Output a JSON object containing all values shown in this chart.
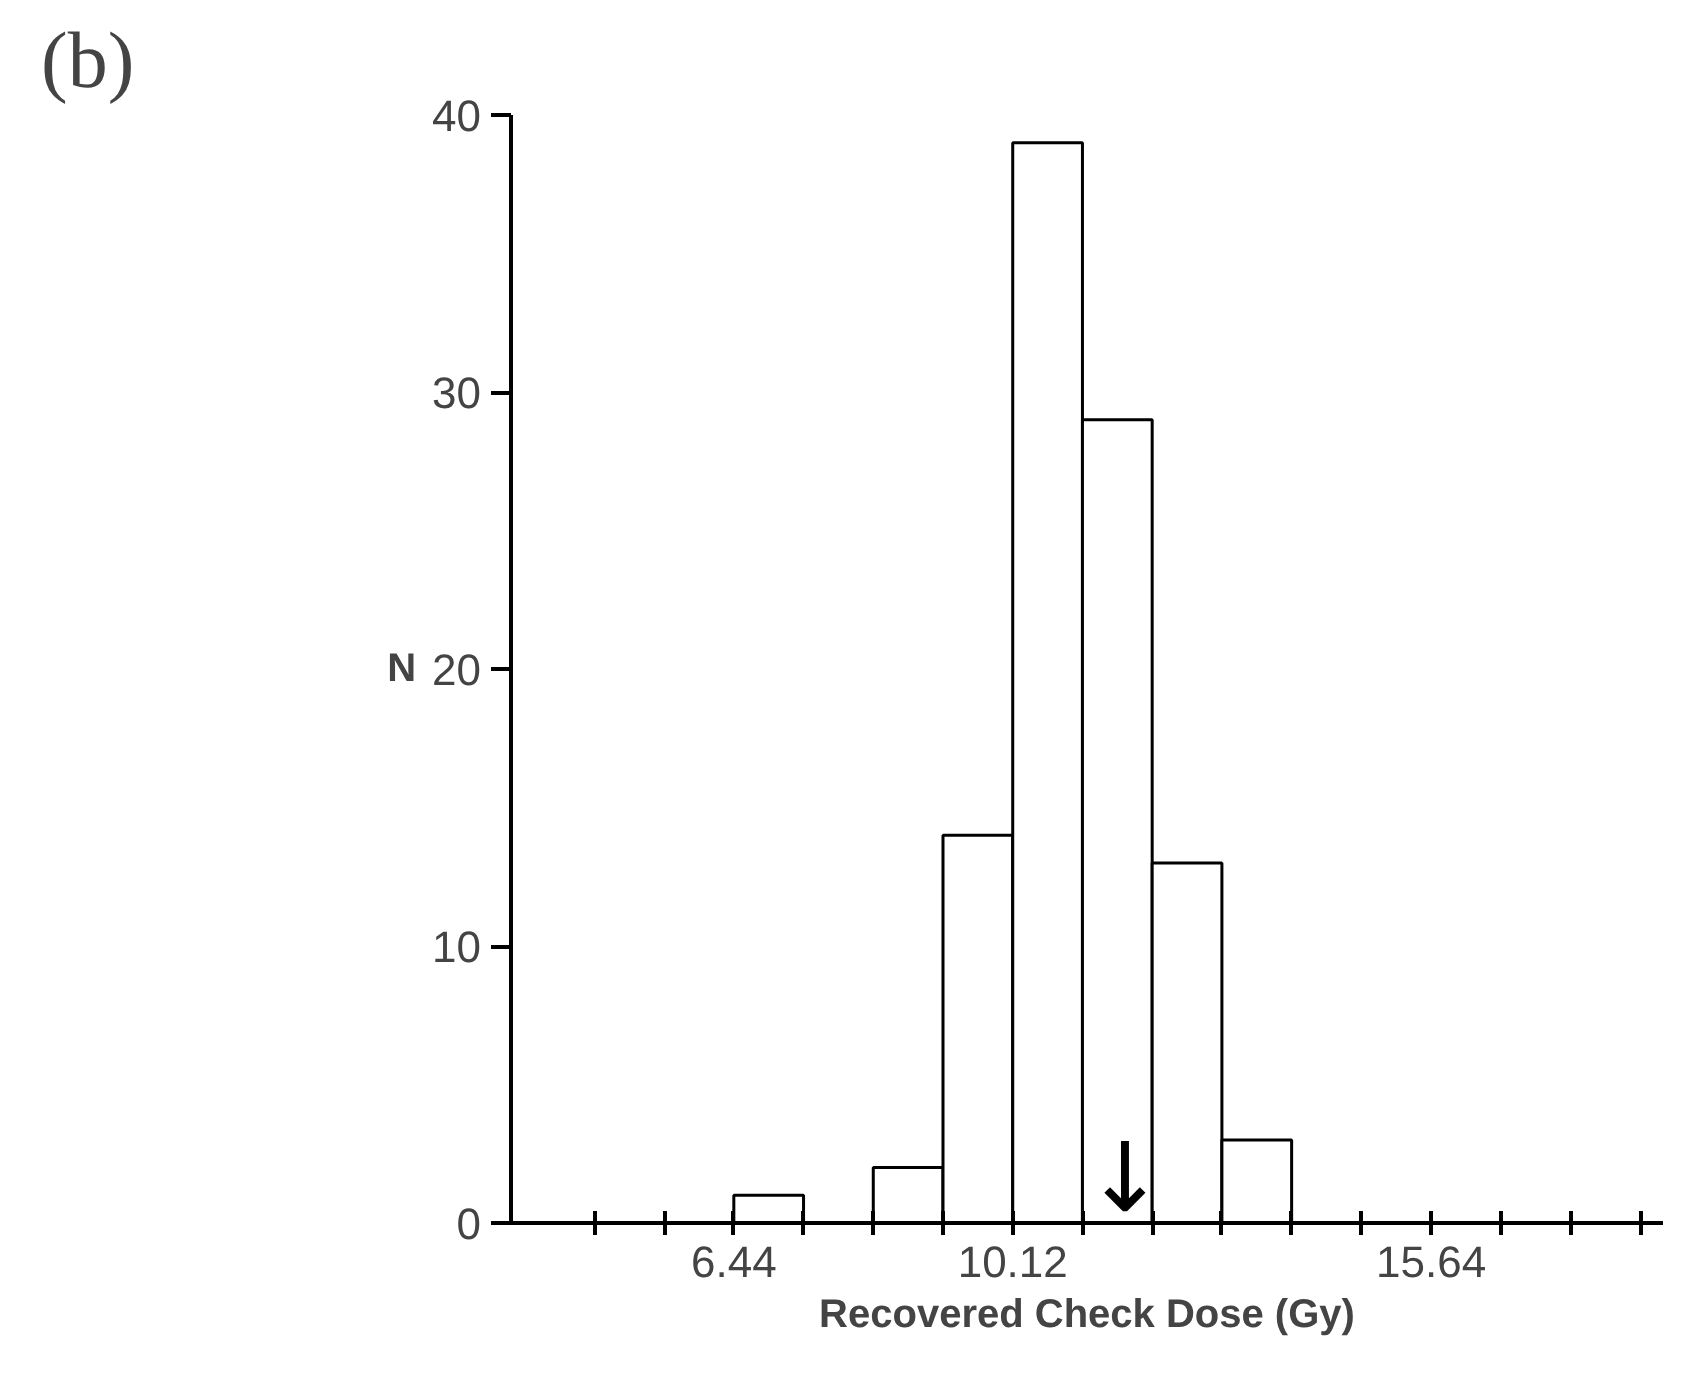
{
  "chart_data": {
    "type": "histogram",
    "title": "(b)",
    "xlabel": "Recovered Check Dose (Gy)",
    "ylabel": "N",
    "bins": [
      6.44,
      7.36,
      8.28,
      9.2,
      10.12,
      11.04,
      11.96,
      12.88,
      13.8
    ],
    "values": [
      1,
      0,
      2,
      14,
      39,
      29,
      13,
      3
    ],
    "color": "#ffffff",
    "xlim": [
      3.5,
      18.7
    ],
    "ylim": [
      0,
      40
    ],
    "xticks": [
      {
        "value": 4.6,
        "label": null
      },
      {
        "value": 5.52,
        "label": null
      },
      6.44,
      {
        "value": 7.36,
        "label": null
      },
      {
        "value": 8.28,
        "label": null
      },
      {
        "value": 9.2,
        "label": null
      },
      10.12,
      {
        "value": 11.04,
        "label": null
      },
      {
        "value": 11.96,
        "label": null
      },
      {
        "value": 12.88,
        "label": null
      },
      {
        "value": 13.8,
        "label": null
      },
      {
        "value": 14.72,
        "label": null
      },
      15.64,
      {
        "value": 16.56,
        "label": null
      },
      {
        "value": 17.48,
        "label": null
      },
      {
        "value": 18.4,
        "label": null
      }
    ],
    "yticks": [
      0,
      10,
      20,
      30,
      40
    ],
    "annotations": [
      {
        "text": "↓",
        "x": 11.6,
        "y": 0
      }
    ],
    "grid": false
  }
}
